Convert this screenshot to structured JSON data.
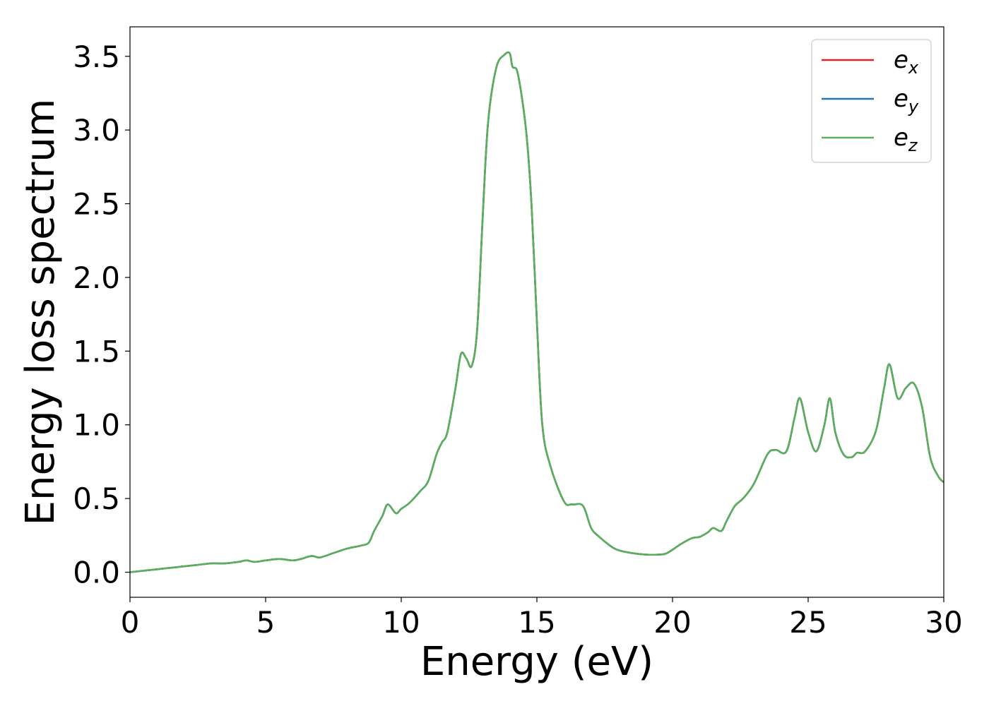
{
  "chart_data": {
    "type": "line",
    "xlabel": "Energy (eV)",
    "ylabel": "Energy loss spectrum",
    "xlim": [
      0,
      30
    ],
    "ylim": [
      -0.17,
      3.7
    ],
    "xticks": [
      0,
      5,
      10,
      15,
      20,
      25,
      30
    ],
    "xtick_labels": [
      "0",
      "5",
      "10",
      "15",
      "20",
      "25",
      "30"
    ],
    "yticks": [
      0.0,
      0.5,
      1.0,
      1.5,
      2.0,
      2.5,
      3.0,
      3.5
    ],
    "ytick_labels": [
      "0.0",
      "0.5",
      "1.0",
      "1.5",
      "2.0",
      "2.5",
      "3.0",
      "3.5"
    ],
    "grid": false,
    "legend_position": "top-right",
    "x": [
      0,
      0.5,
      1,
      1.5,
      2,
      2.5,
      3,
      3.5,
      4,
      4.3,
      4.6,
      5,
      5.5,
      6,
      6.3,
      6.7,
      7,
      7.5,
      8,
      8.5,
      8.8,
      9,
      9.3,
      9.5,
      9.8,
      10,
      10.3,
      10.7,
      11,
      11.3,
      11.5,
      11.7,
      12,
      12.2,
      12.4,
      12.6,
      12.8,
      13,
      13.2,
      13.5,
      13.8,
      14,
      14.1,
      14.3,
      14.6,
      14.8,
      15,
      15.2,
      15.5,
      16,
      16.3,
      16.7,
      17,
      17.3,
      17.7,
      18,
      18.5,
      19,
      19.5,
      19.8,
      20.3,
      20.7,
      21,
      21.3,
      21.5,
      21.8,
      22,
      22.3,
      22.6,
      23,
      23.5,
      23.8,
      24.2,
      24.5,
      24.7,
      25,
      25.3,
      25.6,
      25.8,
      26,
      26.3,
      26.6,
      26.8,
      27.1,
      27.5,
      27.8,
      28,
      28.3,
      28.6,
      28.9,
      29.2,
      29.5,
      29.8,
      30
    ],
    "series": [
      {
        "name": "e_x",
        "legend_main": "e",
        "legend_sub": "x",
        "color": "#d62728",
        "y": [
          0.0,
          0.01,
          0.02,
          0.03,
          0.04,
          0.05,
          0.06,
          0.06,
          0.07,
          0.08,
          0.07,
          0.08,
          0.09,
          0.08,
          0.09,
          0.11,
          0.1,
          0.13,
          0.16,
          0.18,
          0.2,
          0.28,
          0.38,
          0.46,
          0.4,
          0.43,
          0.47,
          0.55,
          0.62,
          0.8,
          0.88,
          0.95,
          1.25,
          1.48,
          1.45,
          1.4,
          1.65,
          2.4,
          3.05,
          3.42,
          3.51,
          3.52,
          3.43,
          3.38,
          3.0,
          2.5,
          1.7,
          1.0,
          0.72,
          0.48,
          0.46,
          0.45,
          0.3,
          0.24,
          0.18,
          0.15,
          0.13,
          0.12,
          0.12,
          0.13,
          0.19,
          0.23,
          0.24,
          0.27,
          0.3,
          0.28,
          0.35,
          0.45,
          0.5,
          0.6,
          0.8,
          0.83,
          0.82,
          1.05,
          1.18,
          0.95,
          0.82,
          1.0,
          1.18,
          0.95,
          0.8,
          0.78,
          0.81,
          0.82,
          0.96,
          1.25,
          1.41,
          1.18,
          1.25,
          1.28,
          1.12,
          0.78,
          0.65,
          0.61
        ]
      },
      {
        "name": "e_y",
        "legend_main": "e",
        "legend_sub": "y",
        "color": "#1f77b4",
        "y": [
          0.0,
          0.01,
          0.02,
          0.03,
          0.04,
          0.05,
          0.06,
          0.06,
          0.07,
          0.08,
          0.07,
          0.08,
          0.09,
          0.08,
          0.09,
          0.11,
          0.1,
          0.13,
          0.16,
          0.18,
          0.2,
          0.28,
          0.38,
          0.46,
          0.4,
          0.43,
          0.47,
          0.55,
          0.62,
          0.8,
          0.88,
          0.95,
          1.25,
          1.48,
          1.45,
          1.4,
          1.65,
          2.4,
          3.05,
          3.42,
          3.51,
          3.52,
          3.43,
          3.38,
          3.0,
          2.5,
          1.7,
          1.0,
          0.72,
          0.48,
          0.46,
          0.45,
          0.3,
          0.24,
          0.18,
          0.15,
          0.13,
          0.12,
          0.12,
          0.13,
          0.19,
          0.23,
          0.24,
          0.27,
          0.3,
          0.28,
          0.35,
          0.45,
          0.5,
          0.6,
          0.8,
          0.83,
          0.82,
          1.05,
          1.18,
          0.95,
          0.82,
          1.0,
          1.18,
          0.95,
          0.8,
          0.78,
          0.81,
          0.82,
          0.96,
          1.25,
          1.41,
          1.18,
          1.25,
          1.28,
          1.12,
          0.78,
          0.65,
          0.61
        ]
      },
      {
        "name": "e_z",
        "legend_main": "e",
        "legend_sub": "z",
        "color": "#5aaf5a",
        "y": [
          0.0,
          0.01,
          0.02,
          0.03,
          0.04,
          0.05,
          0.06,
          0.06,
          0.07,
          0.08,
          0.07,
          0.08,
          0.09,
          0.08,
          0.09,
          0.11,
          0.1,
          0.13,
          0.16,
          0.18,
          0.2,
          0.28,
          0.38,
          0.46,
          0.4,
          0.43,
          0.47,
          0.55,
          0.62,
          0.8,
          0.88,
          0.95,
          1.25,
          1.48,
          1.45,
          1.4,
          1.65,
          2.4,
          3.05,
          3.42,
          3.51,
          3.52,
          3.43,
          3.38,
          3.0,
          2.5,
          1.7,
          1.0,
          0.72,
          0.48,
          0.46,
          0.45,
          0.3,
          0.24,
          0.18,
          0.15,
          0.13,
          0.12,
          0.12,
          0.13,
          0.19,
          0.23,
          0.24,
          0.27,
          0.3,
          0.28,
          0.35,
          0.45,
          0.5,
          0.6,
          0.8,
          0.83,
          0.82,
          1.05,
          1.18,
          0.95,
          0.82,
          1.0,
          1.18,
          0.95,
          0.8,
          0.78,
          0.81,
          0.82,
          0.96,
          1.25,
          1.41,
          1.18,
          1.25,
          1.28,
          1.12,
          0.78,
          0.65,
          0.61
        ]
      }
    ]
  }
}
